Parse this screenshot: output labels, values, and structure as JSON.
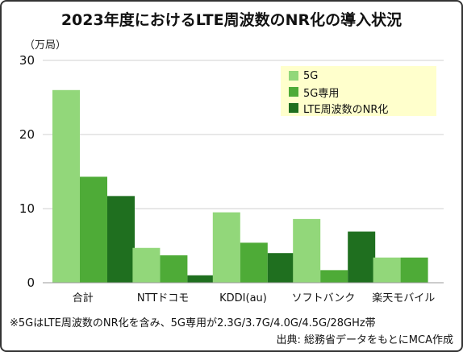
{
  "title": "2023年度におけるLTE周波数のNR化の導入状況",
  "footnote": "※5GはLTE周波数のNR化を含み、5G専用が2.3G/3.7G/4.0G/4.5G/28GHz帯",
  "source": "出典: 総務省データをもとにMCA作成",
  "colors": {
    "5G": "#92D77A",
    "5G専用": "#4EAB37",
    "LTE周波数のNR化": "#1F6F1F",
    "legend_bg": "#FFFFCC"
  },
  "chart_data": {
    "type": "bar",
    "ylabel": "（万局）",
    "ylim": [
      0,
      30
    ],
    "yticks": [
      0,
      10,
      20,
      30
    ],
    "grid": true,
    "legend_position": "top-right",
    "categories": [
      "合計",
      "NTTドコモ",
      "KDDI(au)",
      "ソフトバンク",
      "楽天モバイル"
    ],
    "series": [
      {
        "name": "5G",
        "values": [
          26.0,
          4.7,
          9.5,
          8.6,
          3.4
        ]
      },
      {
        "name": "5G専用",
        "values": [
          14.3,
          3.7,
          5.4,
          1.7,
          3.4
        ]
      },
      {
        "name": "LTE周波数のNR化",
        "values": [
          11.7,
          1.0,
          4.0,
          6.9,
          0
        ]
      }
    ]
  }
}
